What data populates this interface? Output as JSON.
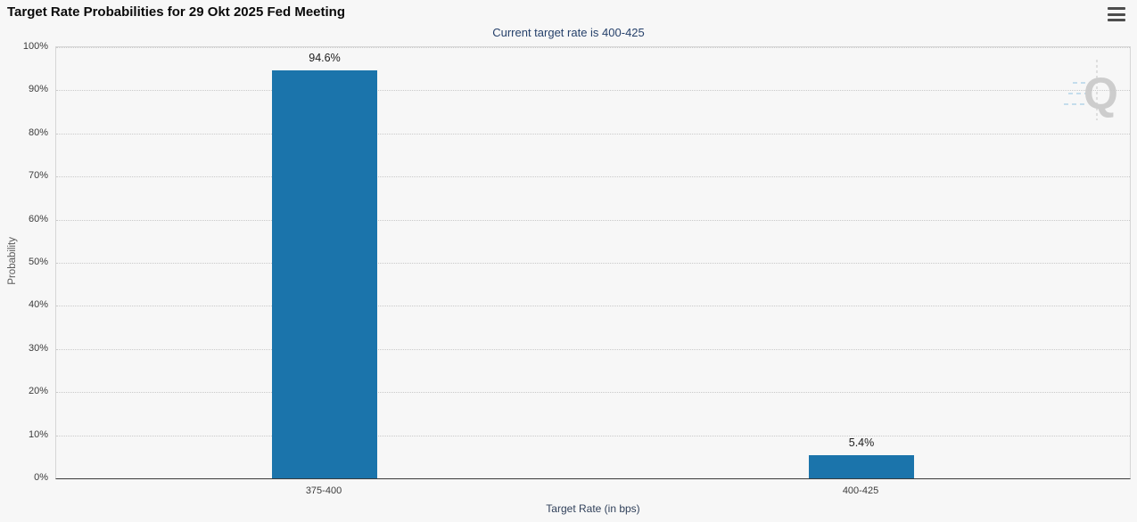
{
  "page": {
    "background": "#f7f7f7"
  },
  "menu": {
    "icon": "hamburger-icon"
  },
  "watermark": {
    "letter": "Q"
  },
  "chart_data": {
    "type": "bar",
    "title": "Target Rate Probabilities for 29 Okt 2025 Fed Meeting",
    "subtitle": "Current target rate is 400-425",
    "xlabel": "Target Rate (in bps)",
    "ylabel": "Probability",
    "categories": [
      "375-400",
      "400-425"
    ],
    "values": [
      94.6,
      5.4
    ],
    "value_labels": [
      "94.6%",
      "5.4%"
    ],
    "ylim": [
      0,
      100
    ],
    "ytick_values": [
      0,
      10,
      20,
      30,
      40,
      50,
      60,
      70,
      80,
      90,
      100
    ],
    "ytick_labels": [
      "0%",
      "10%",
      "20%",
      "30%",
      "40%",
      "50%",
      "60%",
      "70%",
      "80%",
      "90%",
      "100%"
    ],
    "grid": "horizontal-dotted",
    "legend": "none",
    "bar_color": "#1b74ab"
  }
}
